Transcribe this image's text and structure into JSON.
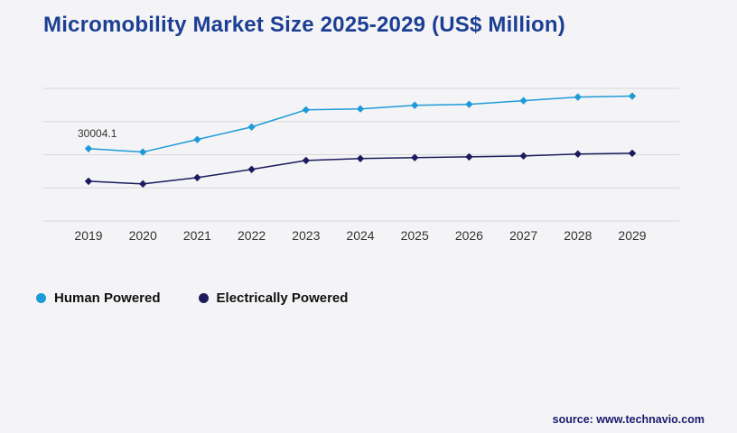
{
  "title": "Micromobility Market Size 2025-2029 (US$ Million)",
  "source": "source: www.technavio.com",
  "annotation_label": "30004.1",
  "colors": {
    "title": "#1c3f94",
    "human_powered": "#1d9bd8",
    "electrically_powered": "#1c1b5e",
    "grid": "#d8d8da",
    "axis_text": "#333333",
    "background": "#f4f4f6"
  },
  "legend": {
    "items": [
      {
        "label": "Human Powered",
        "color": "#1d9bd8"
      },
      {
        "label": "Electrically Powered",
        "color": "#1c1b5e"
      }
    ]
  },
  "chart_data": {
    "type": "line",
    "title": "Micromobility Market Size 2025-2029 (US$ Million)",
    "x": [
      "2019",
      "2020",
      "2021",
      "2022",
      "2023",
      "2024",
      "2025",
      "2026",
      "2027",
      "2028",
      "2029"
    ],
    "series": [
      {
        "name": "Human Powered",
        "color": "#1d9bd8",
        "values": [
          30004.1,
          28600,
          33800,
          39000,
          46100,
          46500,
          48000,
          48400,
          49900,
          51400,
          51800
        ]
      },
      {
        "name": "Electrically Powered",
        "color": "#1c1b5e",
        "values": [
          16500,
          15400,
          18000,
          21400,
          25100,
          25900,
          26300,
          26600,
          27000,
          27800,
          28100
        ]
      }
    ],
    "ylim": [
      0,
      55000
    ],
    "gridline_count": 5,
    "grid": true,
    "y_axis_labels_visible": false,
    "legend_position": "bottom-left",
    "labeled_point": {
      "series": "Human Powered",
      "x": "2019",
      "value": 30004.1,
      "label": "30004.1"
    }
  }
}
